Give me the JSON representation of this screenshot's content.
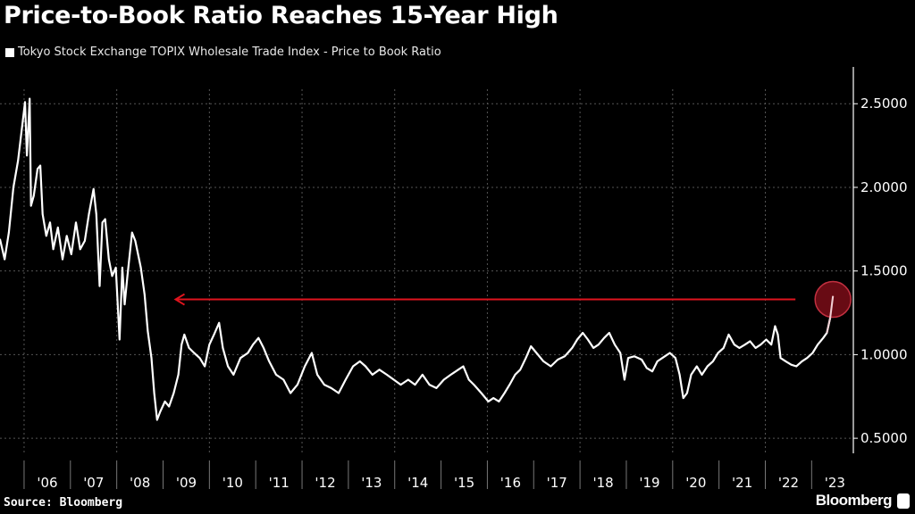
{
  "chart_data": {
    "type": "line",
    "title": "Price-to-Book Ratio Reaches 15-Year High",
    "legend": [
      "Tokyo Stock Exchange TOPIX Wholesale Trade Index - Price to Book Ratio"
    ],
    "legend_placement": "top-left",
    "source": "Source: Bloomberg",
    "brand": "Bloomberg",
    "xlim": [
      2005.48,
      2023.9
    ],
    "ylim": [
      0.41,
      2.72
    ],
    "y_axis_side": "right",
    "yticks": [
      0.5,
      1.0,
      1.5,
      2.0,
      2.5
    ],
    "ytick_labels": [
      "0.5000",
      "1.0000",
      "1.5000",
      "2.0000",
      "2.5000"
    ],
    "xticks": [
      2006,
      2007,
      2008,
      2009,
      2010,
      2011,
      2012,
      2013,
      2014,
      2015,
      2016,
      2017,
      2018,
      2019,
      2020,
      2021,
      2022,
      2023
    ],
    "xtick_labels": [
      "'06",
      "'07",
      "'08",
      "'09",
      "'10",
      "'11",
      "'12",
      "'13",
      "'14",
      "'15",
      "'16",
      "'17",
      "'18",
      "'19",
      "'20",
      "'21",
      "'22",
      "'23"
    ],
    "grid": true,
    "colors": {
      "background": "#000000",
      "line": "#ffffff",
      "annotation": "#e0141e",
      "highlight": "#7a0d18"
    },
    "annotations": {
      "arrow": {
        "value": 1.33,
        "from": 2022.65,
        "to": 2009.27
      },
      "circle": {
        "x": 2023.46,
        "value": 1.33
      }
    },
    "series": [
      {
        "x": [
          2005.48,
          2005.58,
          2005.67,
          2005.77,
          2005.87,
          2005.96,
          2006.02,
          2006.06,
          2006.12,
          2006.15,
          2006.21,
          2006.29,
          2006.35,
          2006.4,
          2006.48,
          2006.56,
          2006.63,
          2006.73,
          2006.83,
          2006.92,
          2007.02,
          2007.12,
          2007.21,
          2007.31,
          2007.4,
          2007.5,
          2007.56,
          2007.63,
          2007.69,
          2007.75,
          2007.83,
          2007.9,
          2007.98,
          2008.06,
          2008.12,
          2008.17,
          2008.23,
          2008.33,
          2008.4,
          2008.52,
          2008.6,
          2008.67,
          2008.75,
          2008.81,
          2008.87,
          2008.94,
          2009.04,
          2009.13,
          2009.23,
          2009.33,
          2009.4,
          2009.46,
          2009.56,
          2009.67,
          2009.79,
          2009.9,
          2010.0,
          2010.1,
          2010.21,
          2010.29,
          2010.4,
          2010.52,
          2010.67,
          2010.83,
          2010.94,
          2011.06,
          2011.17,
          2011.29,
          2011.44,
          2011.6,
          2011.75,
          2011.9,
          2012.06,
          2012.21,
          2012.33,
          2012.48,
          2012.63,
          2012.79,
          2012.94,
          2013.1,
          2013.25,
          2013.37,
          2013.52,
          2013.67,
          2013.83,
          2013.98,
          2014.13,
          2014.29,
          2014.44,
          2014.6,
          2014.75,
          2014.9,
          2015.06,
          2015.21,
          2015.37,
          2015.48,
          2015.6,
          2015.71,
          2015.87,
          2016.02,
          2016.13,
          2016.25,
          2016.37,
          2016.48,
          2016.6,
          2016.71,
          2016.83,
          2016.94,
          2017.06,
          2017.21,
          2017.37,
          2017.52,
          2017.67,
          2017.83,
          2017.94,
          2018.06,
          2018.17,
          2018.29,
          2018.4,
          2018.52,
          2018.63,
          2018.75,
          2018.87,
          2018.96,
          2019.04,
          2019.17,
          2019.33,
          2019.44,
          2019.56,
          2019.67,
          2019.83,
          2019.94,
          2020.06,
          2020.15,
          2020.23,
          2020.31,
          2020.4,
          2020.52,
          2020.63,
          2020.75,
          2020.87,
          2020.98,
          2021.1,
          2021.21,
          2021.33,
          2021.44,
          2021.56,
          2021.67,
          2021.79,
          2021.9,
          2022.02,
          2022.13,
          2022.21,
          2022.27,
          2022.33,
          2022.44,
          2022.56,
          2022.67,
          2022.79,
          2022.9,
          2023.02,
          2023.13,
          2023.25,
          2023.33,
          2023.4,
          2023.46
        ],
        "values": [
          1.69,
          1.57,
          1.73,
          2.0,
          2.16,
          2.37,
          2.51,
          2.19,
          2.53,
          1.89,
          1.95,
          2.11,
          2.13,
          1.84,
          1.71,
          1.79,
          1.63,
          1.76,
          1.57,
          1.71,
          1.6,
          1.79,
          1.63,
          1.68,
          1.84,
          1.99,
          1.84,
          1.41,
          1.79,
          1.81,
          1.57,
          1.47,
          1.52,
          1.09,
          1.52,
          1.3,
          1.47,
          1.73,
          1.68,
          1.52,
          1.36,
          1.14,
          0.98,
          0.77,
          0.61,
          0.66,
          0.72,
          0.69,
          0.77,
          0.88,
          1.06,
          1.12,
          1.04,
          1.01,
          0.98,
          0.93,
          1.06,
          1.12,
          1.19,
          1.04,
          0.93,
          0.88,
          0.98,
          1.01,
          1.06,
          1.1,
          1.04,
          0.96,
          0.88,
          0.85,
          0.77,
          0.82,
          0.93,
          1.01,
          0.88,
          0.82,
          0.8,
          0.77,
          0.85,
          0.93,
          0.96,
          0.93,
          0.88,
          0.91,
          0.88,
          0.85,
          0.82,
          0.85,
          0.82,
          0.88,
          0.82,
          0.8,
          0.85,
          0.88,
          0.91,
          0.93,
          0.85,
          0.82,
          0.77,
          0.72,
          0.74,
          0.72,
          0.77,
          0.82,
          0.88,
          0.91,
          0.98,
          1.05,
          1.01,
          0.96,
          0.93,
          0.97,
          0.99,
          1.04,
          1.09,
          1.13,
          1.09,
          1.04,
          1.06,
          1.1,
          1.13,
          1.06,
          1.01,
          0.85,
          0.98,
          0.99,
          0.97,
          0.92,
          0.9,
          0.96,
          0.99,
          1.01,
          0.98,
          0.88,
          0.74,
          0.77,
          0.88,
          0.93,
          0.88,
          0.93,
          0.96,
          1.01,
          1.04,
          1.12,
          1.06,
          1.04,
          1.06,
          1.08,
          1.04,
          1.06,
          1.09,
          1.06,
          1.17,
          1.12,
          0.98,
          0.96,
          0.94,
          0.93,
          0.96,
          0.98,
          1.01,
          1.06,
          1.1,
          1.13,
          1.22,
          1.35
        ]
      }
    ]
  }
}
